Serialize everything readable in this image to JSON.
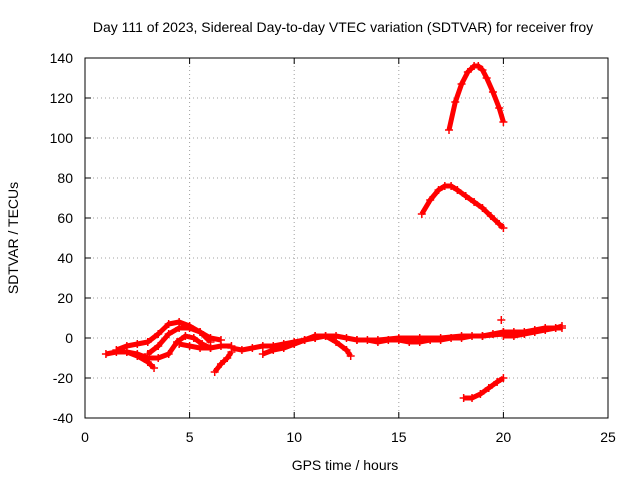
{
  "chart_data": {
    "type": "scatter",
    "title": "Day 111 of 2023, Sidereal Day-to-day VTEC variation (SDTVAR) for receiver froy",
    "xlabel": "GPS time / hours",
    "ylabel": "SDTVAR / TECUs",
    "xlim": [
      0,
      25
    ],
    "ylim": [
      -40,
      140
    ],
    "xticks": [
      0,
      5,
      10,
      15,
      20,
      25
    ],
    "yticks": [
      -40,
      -20,
      0,
      20,
      40,
      60,
      80,
      100,
      120,
      140
    ],
    "grid": true,
    "color": "#ff0000",
    "series": [
      {
        "x": [
          17.4,
          17.7,
          18.0,
          18.3,
          18.6,
          18.8,
          19.0,
          19.2,
          19.5,
          19.8,
          20.0
        ],
        "y": [
          104,
          118,
          127,
          133,
          136,
          136,
          134,
          130,
          123,
          115,
          108
        ]
      },
      {
        "x": [
          16.1,
          16.5,
          16.9,
          17.2,
          17.5,
          17.8,
          18.2,
          18.6,
          19.0,
          19.4,
          19.8,
          20.0
        ],
        "y": [
          62,
          69,
          74,
          76,
          76,
          74,
          71,
          68,
          65,
          61,
          57,
          55
        ]
      },
      {
        "x": [
          18.1,
          18.5,
          18.9,
          19.3,
          19.7,
          20.0
        ],
        "y": [
          -30,
          -30,
          -28,
          -25,
          -22,
          -20
        ]
      },
      {
        "x": [
          1.0,
          1.5,
          2.0,
          2.5,
          3.0,
          3.3
        ],
        "y": [
          -8,
          -7,
          -7,
          -9,
          -12,
          -15
        ]
      },
      {
        "x": [
          1.5,
          2.0,
          2.5,
          3.0,
          3.5,
          4.0,
          4.5,
          5.0,
          5.5,
          6.0,
          6.5
        ],
        "y": [
          -6,
          -4,
          -3,
          -2,
          2,
          7,
          8,
          6,
          3,
          0,
          -1
        ]
      },
      {
        "x": [
          3.0,
          3.5,
          4.0,
          4.5,
          5.0,
          5.5,
          6.0
        ],
        "y": [
          -8,
          -4,
          2,
          5,
          5,
          3,
          -2
        ]
      },
      {
        "x": [
          2.0,
          2.5,
          3.0,
          3.5,
          4.0,
          4.4,
          4.8,
          5.2,
          5.6,
          6.0
        ],
        "y": [
          -7,
          -8,
          -10,
          -10,
          -8,
          -2,
          1,
          0,
          -3,
          -5
        ]
      },
      {
        "x": [
          4.5,
          5.0,
          5.5,
          6.0,
          6.5,
          7.0
        ],
        "y": [
          -3,
          -4,
          -5,
          -5,
          -4,
          -4
        ]
      },
      {
        "x": [
          6.2,
          6.5,
          6.8,
          7.0
        ],
        "y": [
          -17,
          -13,
          -10,
          -7
        ]
      },
      {
        "x": [
          7.0,
          7.5,
          8.0,
          8.5,
          9.0,
          9.5,
          10.0,
          10.5,
          11.0
        ],
        "y": [
          -5,
          -6,
          -5,
          -4,
          -4,
          -3,
          -2,
          -1,
          0
        ]
      },
      {
        "x": [
          8.5,
          9.0,
          9.5,
          10.0,
          10.5,
          11.0
        ],
        "y": [
          -8,
          -6,
          -5,
          -3,
          -1,
          1
        ]
      },
      {
        "x": [
          9.5,
          10.0,
          10.5,
          11.0,
          11.5,
          12.0,
          12.5,
          12.7
        ],
        "y": [
          -5,
          -3,
          -1,
          1,
          1,
          -2,
          -6,
          -9
        ]
      },
      {
        "x": [
          11.0,
          11.5,
          12.0,
          12.5,
          13.0,
          13.5,
          14.0,
          14.5,
          15.0,
          15.5,
          16.0,
          16.5,
          17.0,
          17.5,
          18.0,
          18.5,
          19.0,
          19.5,
          20.0
        ],
        "y": [
          0,
          1,
          1,
          0,
          -1,
          -1,
          -2,
          -1,
          -1,
          -2,
          -2,
          -1,
          -1,
          0,
          0,
          1,
          1,
          2,
          3
        ]
      },
      {
        "x": [
          13.0,
          14.0,
          15.0,
          16.0,
          17.0,
          18.0,
          19.0,
          20.0
        ],
        "y": [
          -1,
          -1,
          0,
          0,
          0,
          1,
          1,
          2
        ]
      },
      {
        "x": [
          20.0,
          20.5,
          21.0,
          21.5,
          22.0,
          22.5,
          22.8
        ],
        "y": [
          1,
          1,
          2,
          3,
          4,
          5,
          6
        ]
      },
      {
        "x": [
          20.0,
          20.5,
          21.0,
          21.5,
          22.0,
          22.5,
          22.8
        ],
        "y": [
          3,
          3,
          3,
          4,
          5,
          5,
          5
        ]
      },
      {
        "x": [
          19.9
        ],
        "y": [
          9
        ]
      }
    ]
  }
}
